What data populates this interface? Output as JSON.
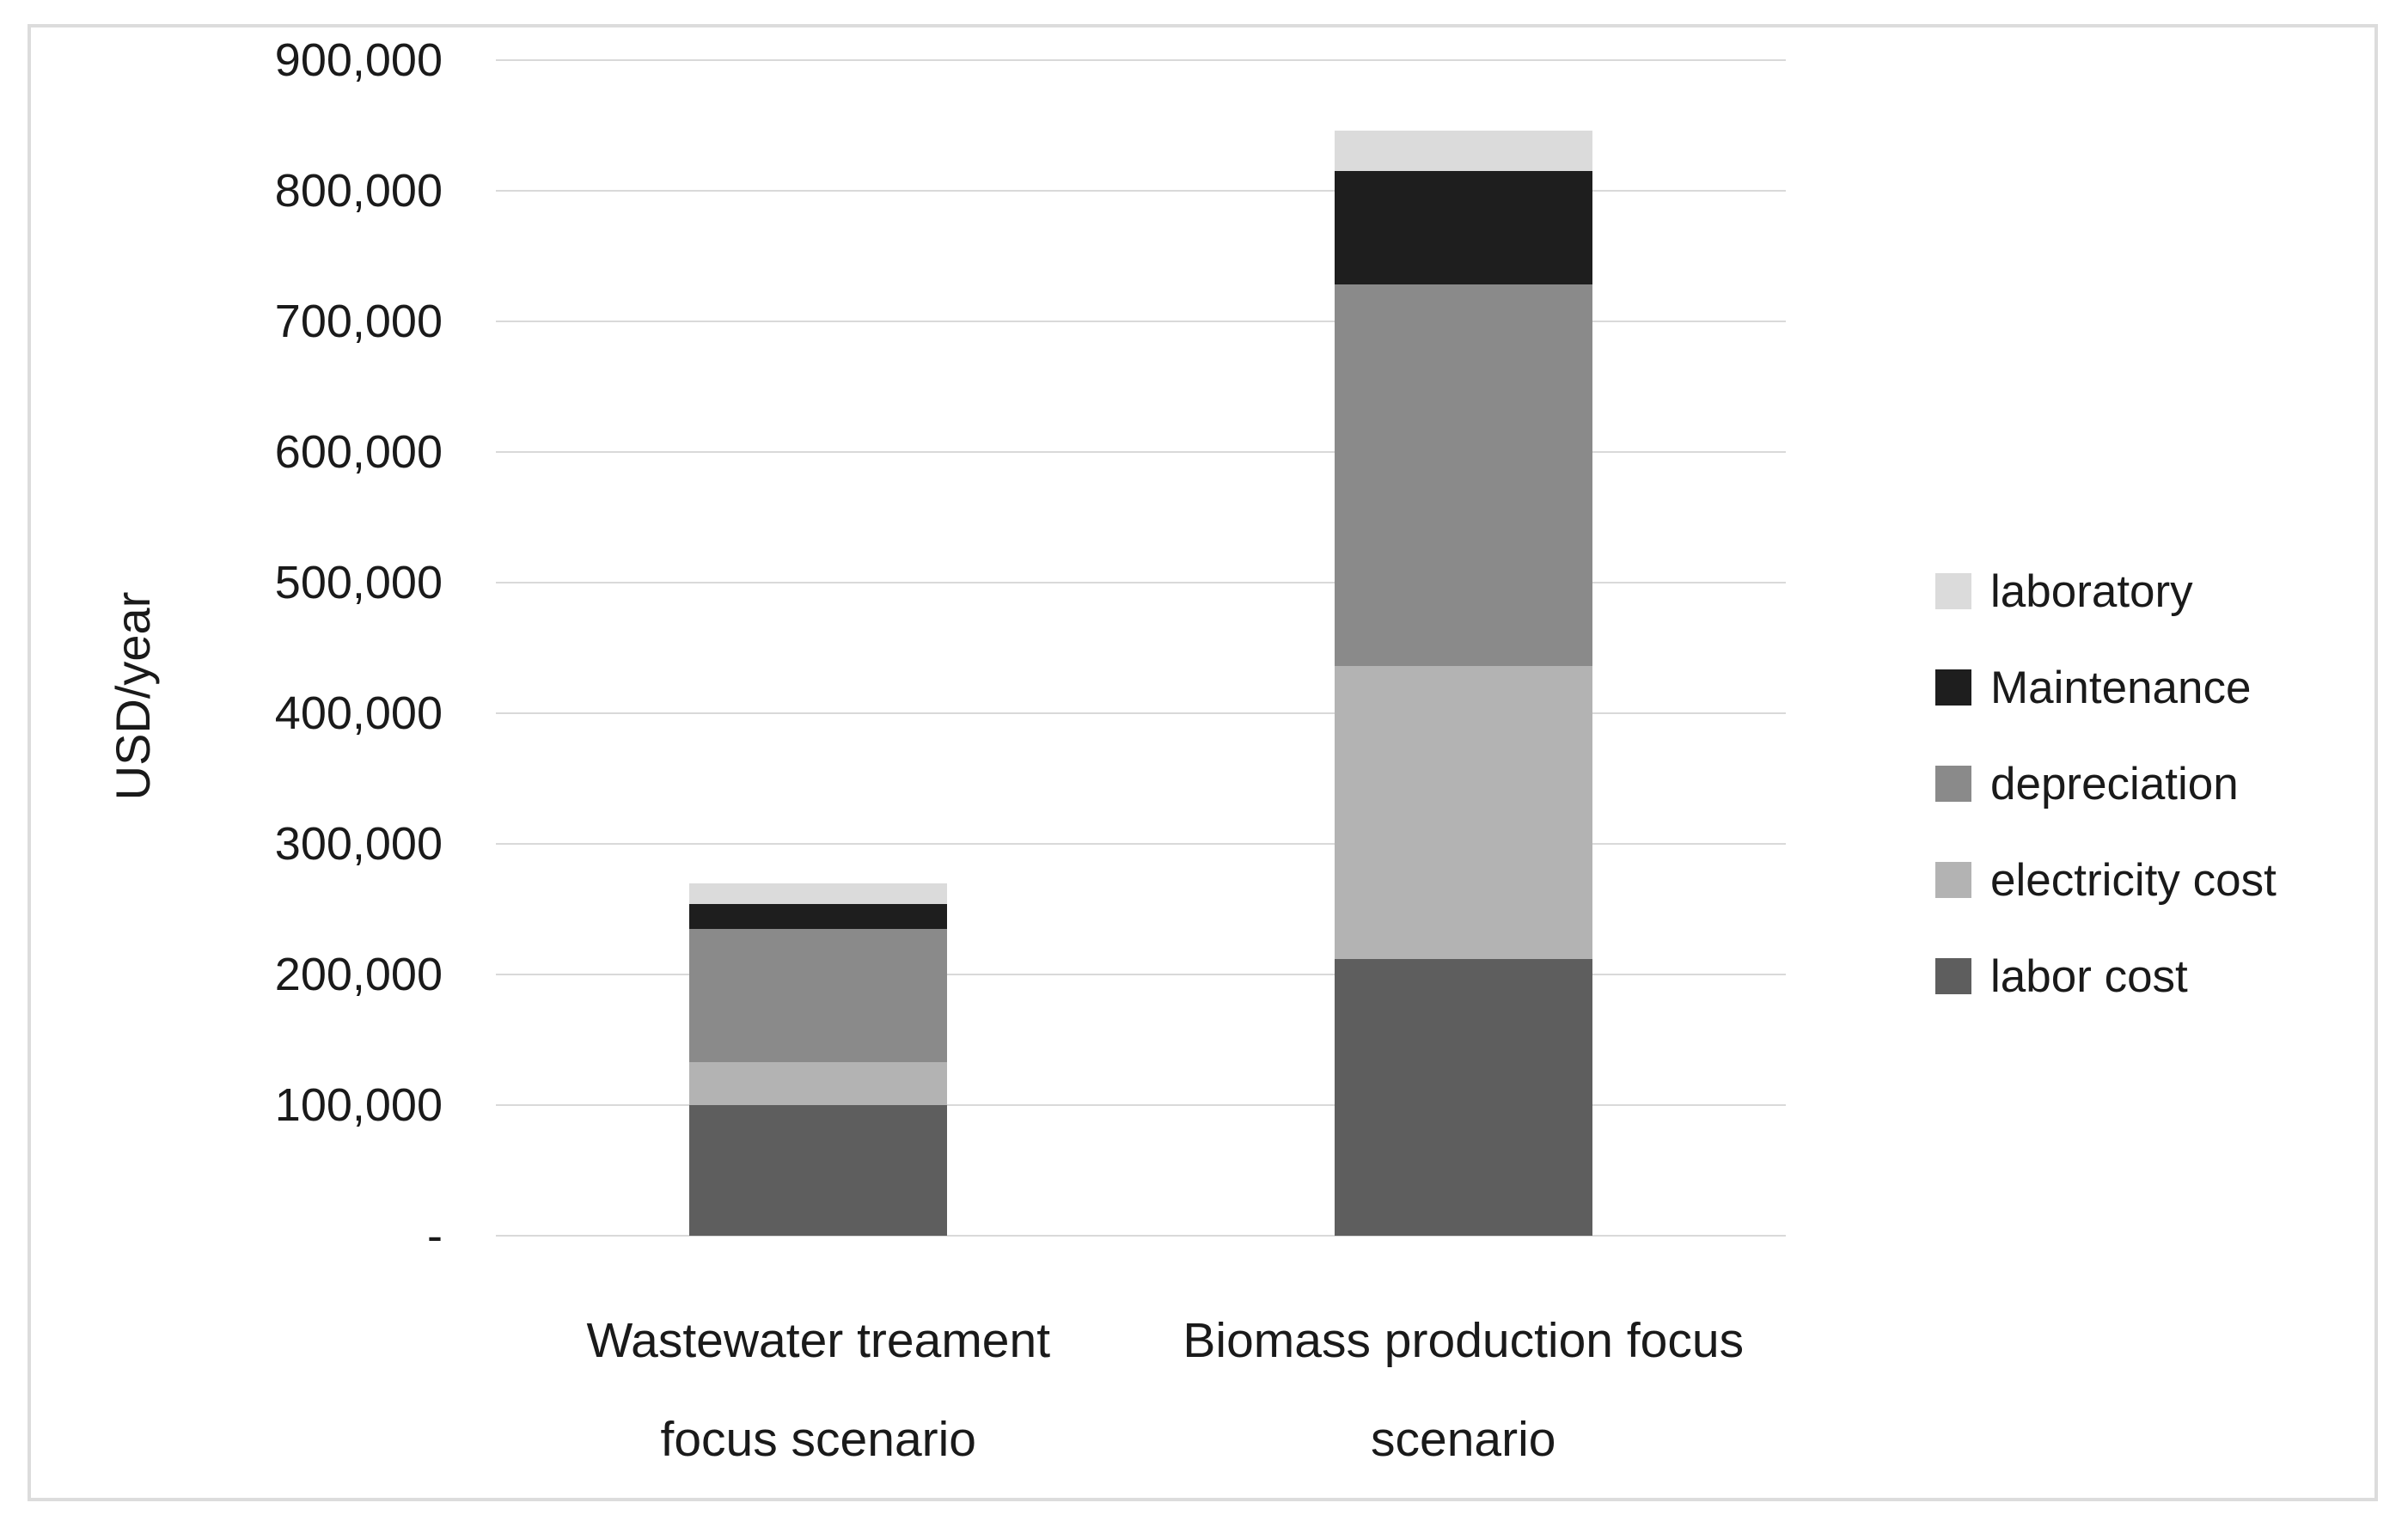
{
  "chart_data": {
    "type": "bar",
    "stacked": true,
    "title": "",
    "xlabel": "",
    "ylabel": "USD/year",
    "grid": true,
    "legend_position": "right",
    "categories": [
      "Wastewater treament\nfocus scenario",
      "Biomass production focus\nscenario"
    ],
    "series": [
      {
        "name": "labor cost",
        "color": "#5e5e5e",
        "values": [
          100000,
          212000
        ]
      },
      {
        "name": "electricity cost",
        "color": "#b3b3b3",
        "values": [
          33000,
          224000
        ]
      },
      {
        "name": "depreciation",
        "color": "#8a8a8a",
        "values": [
          102000,
          292000
        ]
      },
      {
        "name": "Maintenance",
        "color": "#1e1e1e",
        "values": [
          19000,
          87000
        ]
      },
      {
        "name": "laboratory",
        "color": "#dbdbdb",
        "values": [
          16000,
          31000
        ]
      }
    ],
    "stack_totals": [
      270000,
      846000
    ],
    "legend_entries": [
      "laboratory",
      "Maintenance",
      "depreciation",
      "electricity cost",
      "labor cost"
    ],
    "y_axis": {
      "min": 0,
      "max": 900000,
      "tick_step": 100000,
      "tick_labels": [
        "900,000",
        "800,000",
        "700,000",
        "600,000",
        "500,000",
        "400,000",
        "300,000",
        "200,000",
        "100,000",
        "-"
      ]
    },
    "colors": {
      "gridline": "#d9d9d9",
      "chart_border": "#dcdcdc",
      "text": "#1a1a1a",
      "background": "#ffffff"
    }
  }
}
